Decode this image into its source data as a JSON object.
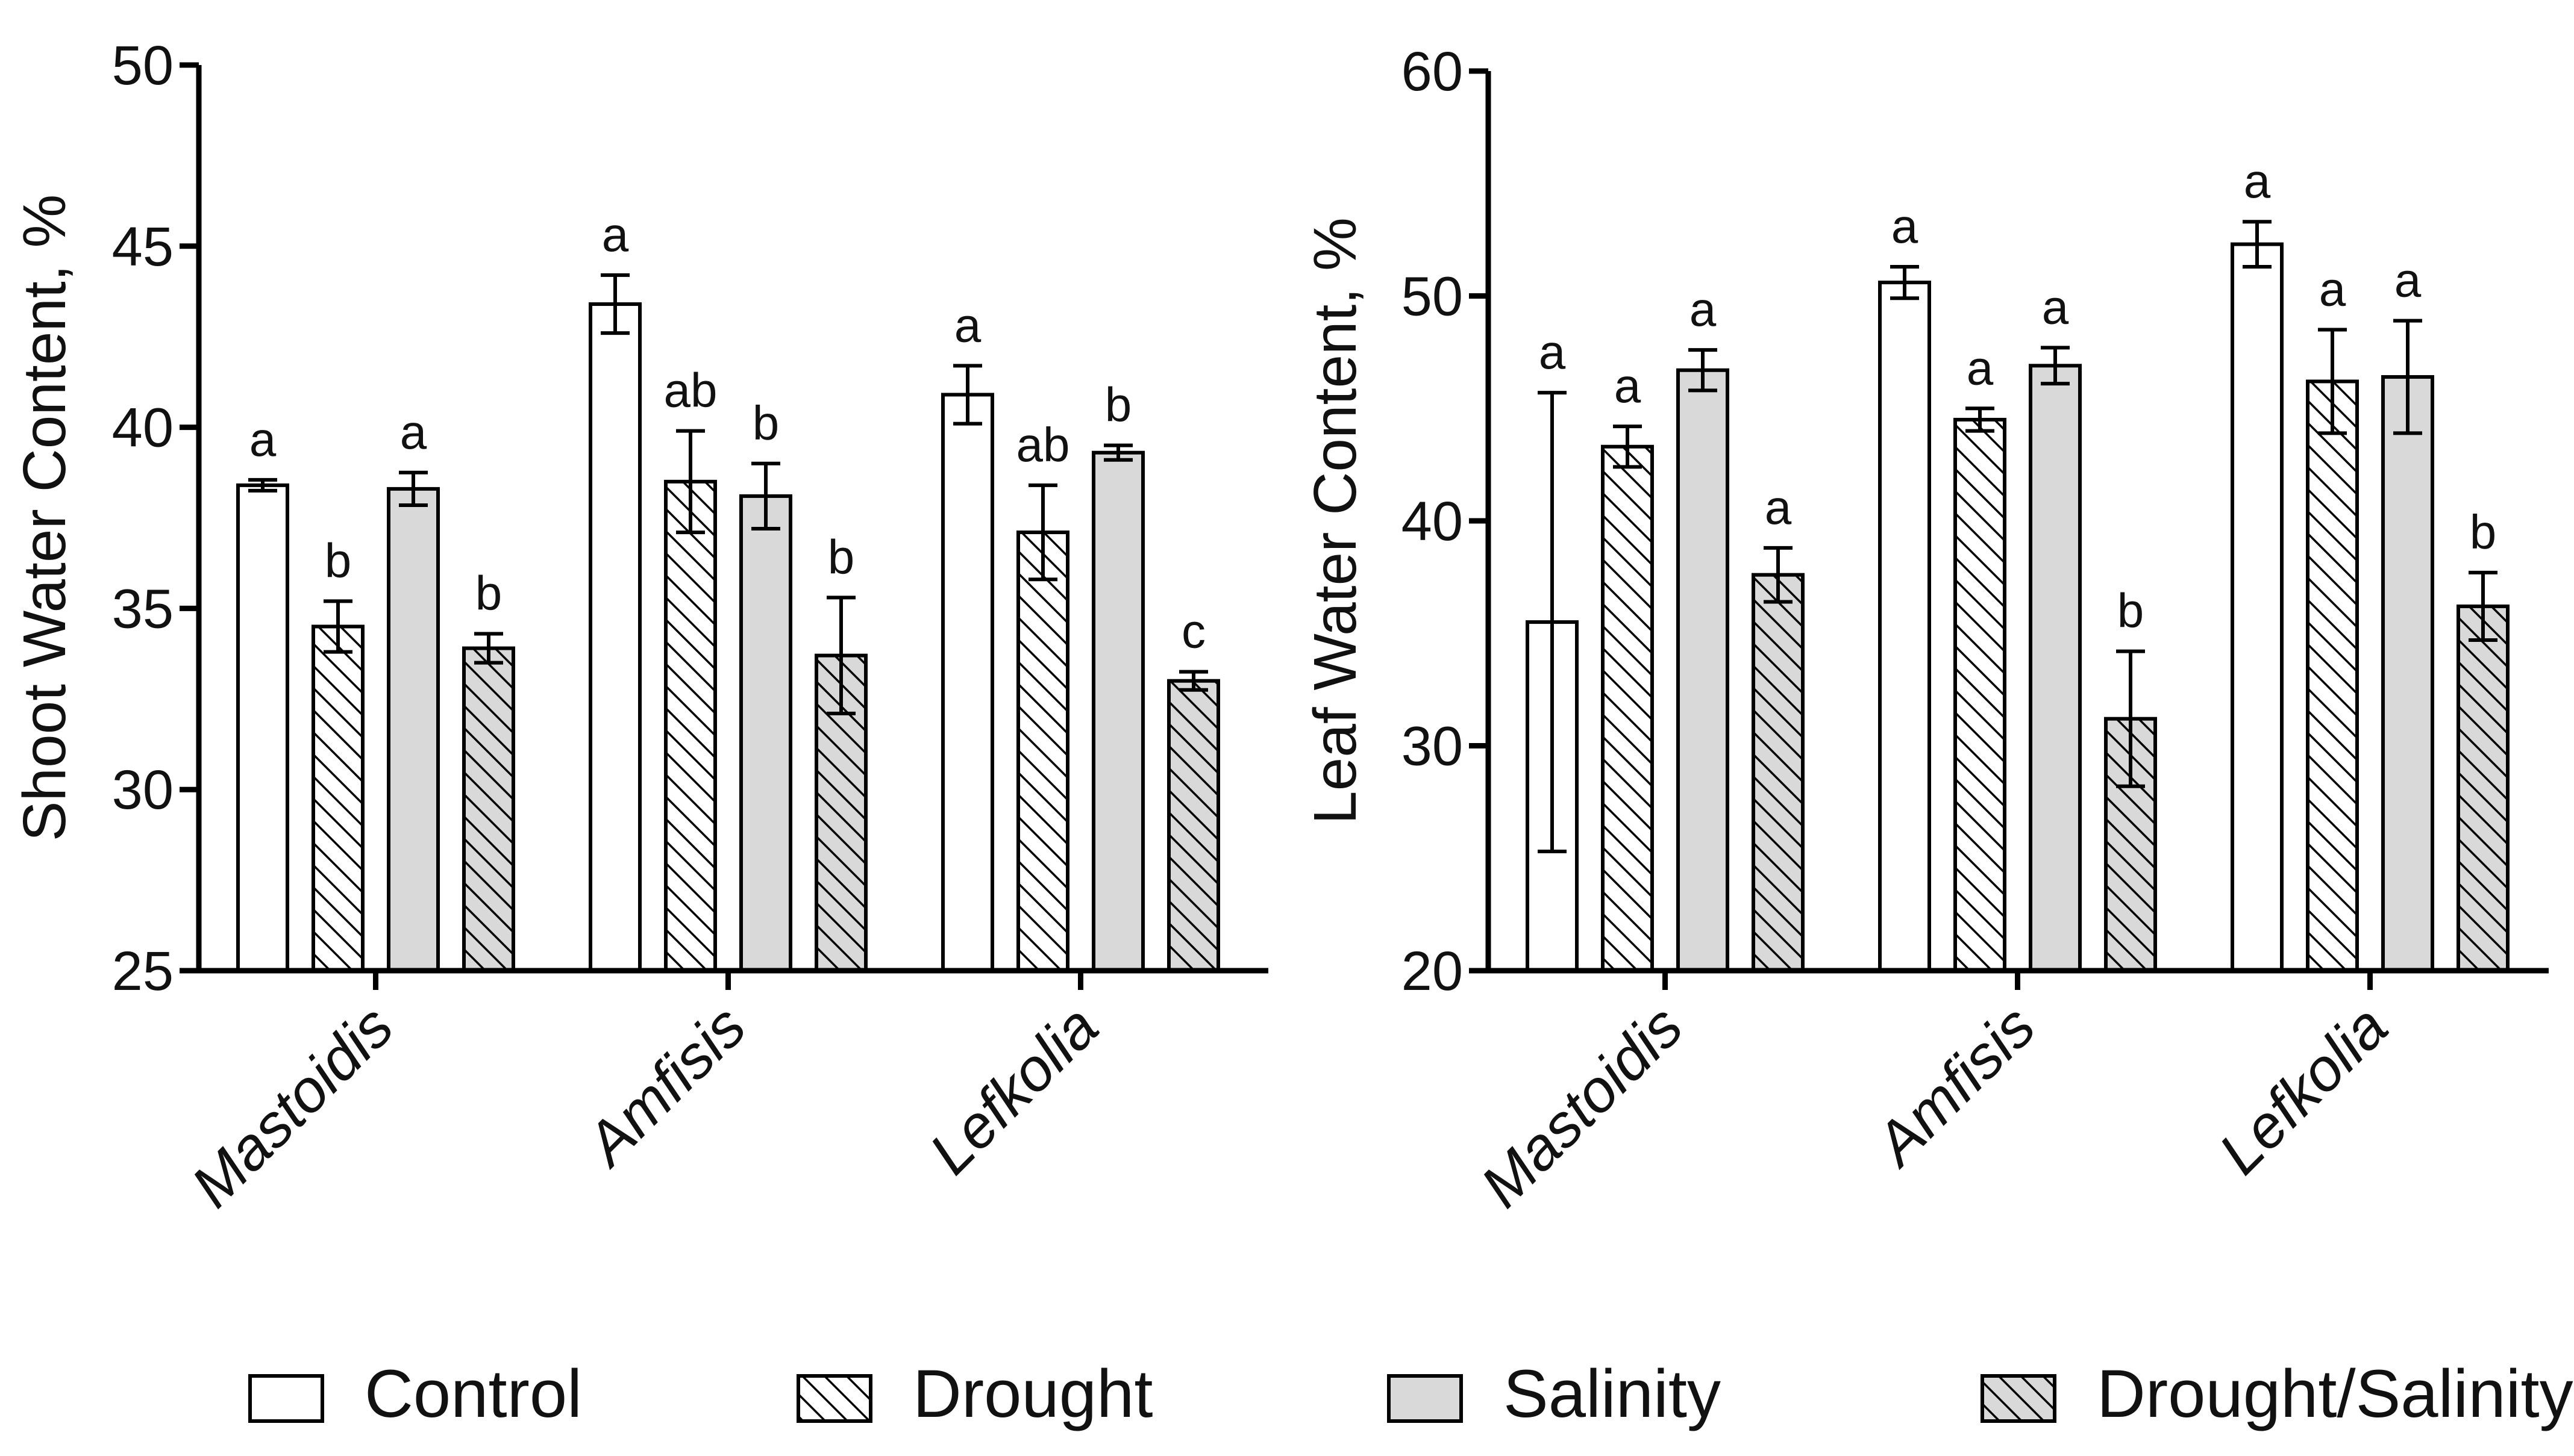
{
  "legend": [
    {
      "key": "control",
      "label": "Control",
      "fill": "#ffffff"
    },
    {
      "key": "drought",
      "label": "Drought",
      "fill": "hatch"
    },
    {
      "key": "salinity",
      "label": "Salinity",
      "fill": "#d9d9d9"
    },
    {
      "key": "drought_salinity",
      "label": "Drought/Salinity",
      "fill": "hatch-gray"
    }
  ],
  "chart_data": [
    {
      "type": "bar",
      "title": "",
      "xlabel": "",
      "ylabel": "Shoot Water Content, %",
      "ylim": [
        25,
        50
      ],
      "yticks": [
        "25",
        "30",
        "35",
        "40",
        "45",
        "50"
      ],
      "categories": [
        "Mastoidis",
        "Amfisis",
        "Lefkolia"
      ],
      "error_bars": true,
      "series": [
        {
          "name": "Control",
          "values": [
            38.4,
            43.4,
            40.9
          ],
          "errors": [
            0.15,
            0.8,
            0.8
          ],
          "letters": [
            "a",
            "a",
            "a"
          ]
        },
        {
          "name": "Drought",
          "values": [
            34.5,
            38.5,
            37.1
          ],
          "errors": [
            0.7,
            1.4,
            1.3
          ],
          "letters": [
            "b",
            "ab",
            "ab"
          ]
        },
        {
          "name": "Salinity",
          "values": [
            38.3,
            38.1,
            39.3
          ],
          "errors": [
            0.45,
            0.9,
            0.2
          ],
          "letters": [
            "a",
            "b",
            "b"
          ]
        },
        {
          "name": "Drought/Salinity",
          "values": [
            33.9,
            33.7,
            33.0
          ],
          "errors": [
            0.4,
            1.6,
            0.25
          ],
          "letters": [
            "b",
            "b",
            "c"
          ]
        }
      ]
    },
    {
      "type": "bar",
      "title": "",
      "xlabel": "",
      "ylabel": "Leaf Water Content, %",
      "ylim": [
        20,
        60
      ],
      "yticks": [
        "20",
        "30",
        "40",
        "50",
        "60"
      ],
      "categories": [
        "Mastoidis",
        "Amfisis",
        "Lefkolia"
      ],
      "error_bars": true,
      "series": [
        {
          "name": "Control",
          "values": [
            35.5,
            50.6,
            52.3
          ],
          "errors": [
            10.2,
            0.7,
            1.0
          ],
          "letters": [
            "a",
            "a",
            "a"
          ]
        },
        {
          "name": "Drought",
          "values": [
            43.3,
            44.5,
            46.2
          ],
          "errors": [
            0.9,
            0.5,
            2.3
          ],
          "letters": [
            "a",
            "a",
            "a"
          ]
        },
        {
          "name": "Salinity",
          "values": [
            46.7,
            46.9,
            46.4
          ],
          "errors": [
            0.9,
            0.8,
            2.5
          ],
          "letters": [
            "a",
            "a",
            "a"
          ]
        },
        {
          "name": "Drought/Salinity",
          "values": [
            37.6,
            31.2,
            36.2
          ],
          "errors": [
            1.2,
            3.0,
            1.5
          ],
          "letters": [
            "a",
            "b",
            "b"
          ]
        }
      ]
    }
  ]
}
